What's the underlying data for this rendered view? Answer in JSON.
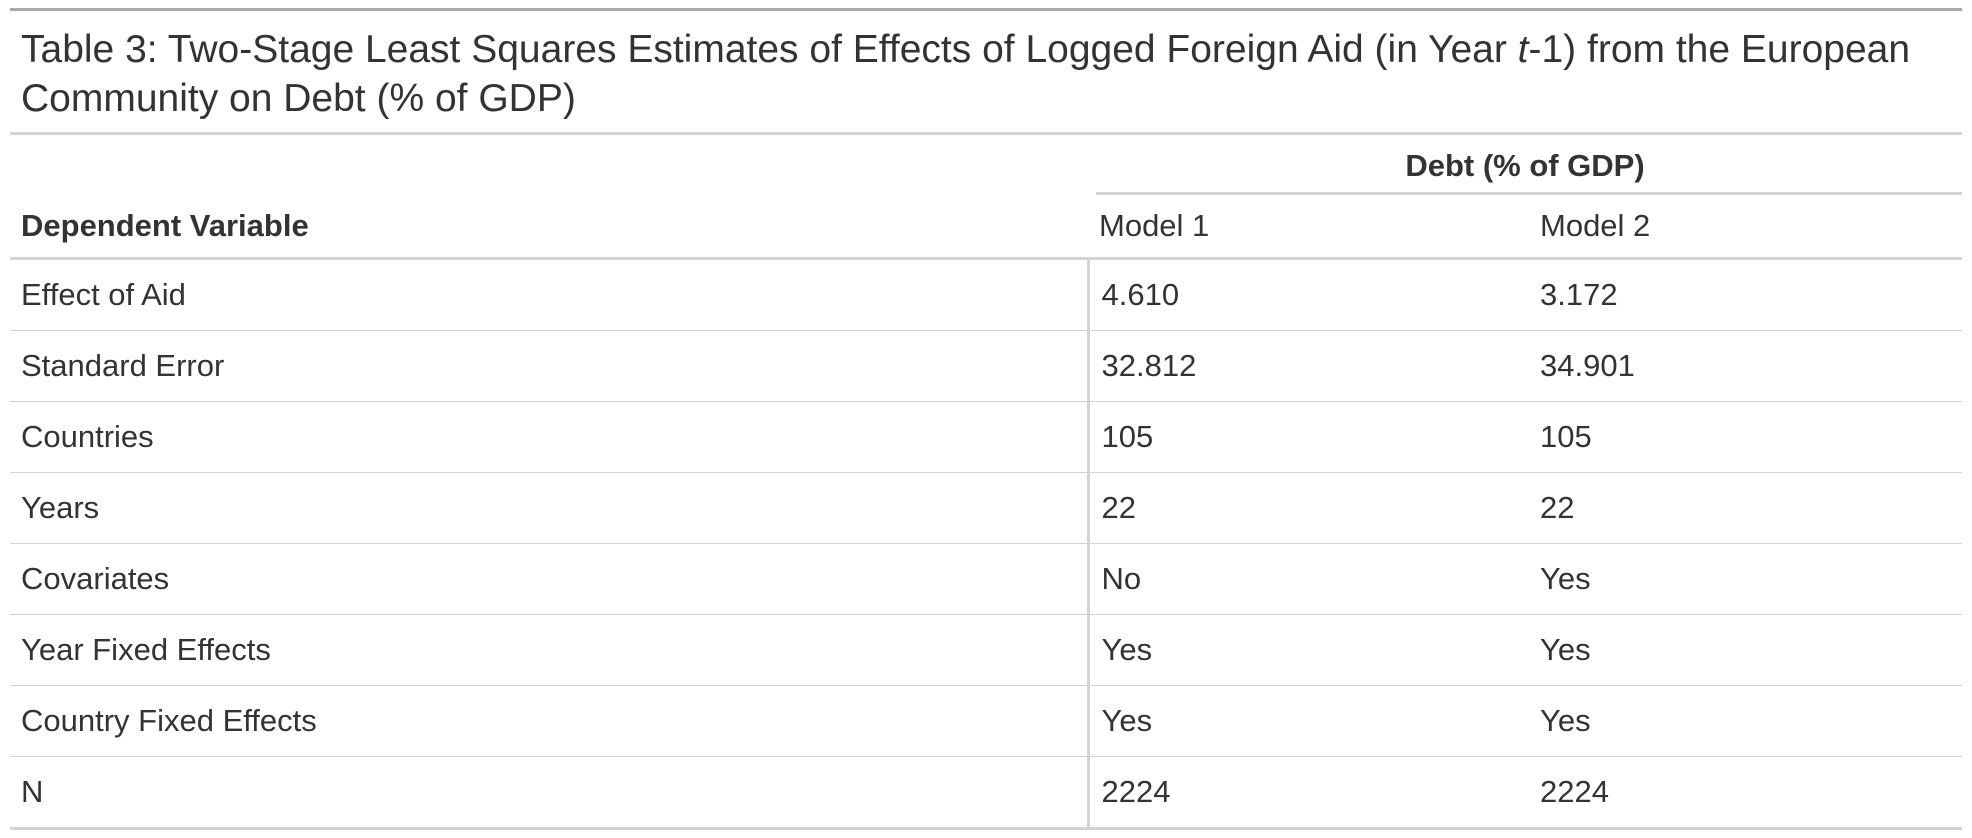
{
  "table": {
    "caption_prefix": "Table 3: Two-Stage Least Squares Estimates of Effects of Logged Foreign Aid (in Year ",
    "caption_italic": "t",
    "caption_suffix": "-1) from the European Community on Debt (% of GDP)",
    "spanner_label": "Debt (% of GDP)",
    "columns": {
      "stub": "Dependent Variable",
      "model1": "Model 1",
      "model2": "Model 2"
    },
    "rows": [
      {
        "label": "Effect of Aid",
        "model1": "4.610",
        "model2": "3.172"
      },
      {
        "label": "Standard Error",
        "model1": "32.812",
        "model2": "34.901"
      },
      {
        "label": "Countries",
        "model1": "105",
        "model2": "105"
      },
      {
        "label": "Years",
        "model1": "22",
        "model2": "22"
      },
      {
        "label": "Covariates",
        "model1": "No",
        "model2": "Yes"
      },
      {
        "label": "Year Fixed Effects",
        "model1": "Yes",
        "model2": "Yes"
      },
      {
        "label": "Country Fixed Effects",
        "model1": "Yes",
        "model2": "Yes"
      },
      {
        "label": "N",
        "model1": "2224",
        "model2": "2224"
      }
    ]
  },
  "colors": {
    "text": "#333333",
    "rule_dark": "#a8a8a8",
    "rule_light": "#d3d3d3"
  }
}
